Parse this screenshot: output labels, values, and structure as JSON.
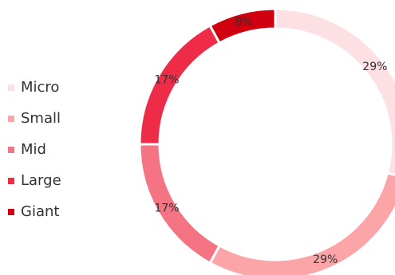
{
  "chart_data": {
    "type": "pie",
    "variant": "donut",
    "title": "",
    "legend_position": "left",
    "slices": [
      {
        "label": "Micro",
        "value": 29,
        "display": "29%",
        "color": "#fde0e4"
      },
      {
        "label": "Small",
        "value": 29,
        "display": "29%",
        "color": "#fca5a8"
      },
      {
        "label": "Mid",
        "value": 17,
        "display": "17%",
        "color": "#f47484"
      },
      {
        "label": "Large",
        "value": 17,
        "display": "17%",
        "color": "#ee2c48"
      },
      {
        "label": "Giant",
        "value": 8,
        "display": "8%",
        "color": "#d00010"
      }
    ]
  }
}
